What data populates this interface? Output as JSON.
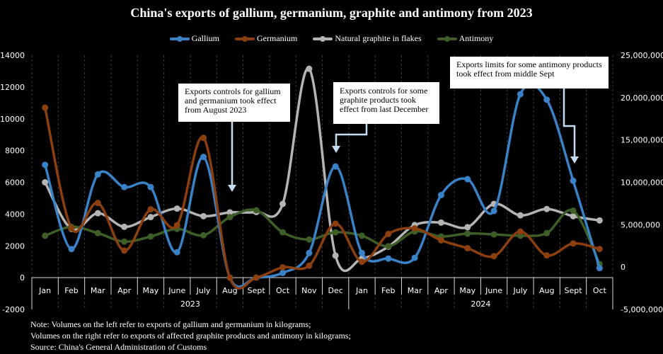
{
  "chart_data": {
    "type": "line",
    "title": "China's exports of gallium, germanium, graphite and antimony from 2023",
    "categories": [
      "Jan",
      "Feb",
      "Mar",
      "Apr",
      "May",
      "June",
      "July",
      "Aug",
      "Sept",
      "Oct",
      "Nov",
      "Dec",
      "Jan",
      "Feb",
      "Mar",
      "Apr",
      "May",
      "June",
      "July",
      "Aug",
      "Sept",
      "Oct"
    ],
    "year_groups": [
      {
        "label": "2023",
        "span": 12
      },
      {
        "label": "2024",
        "span": 10
      }
    ],
    "left_axis": {
      "ylim": [
        -2000,
        14000
      ],
      "ticks": [
        "-2000",
        "0",
        "2000",
        "4000",
        "6000",
        "8000",
        "10000",
        "12000",
        "14000"
      ],
      "tick_values": [
        -2000,
        0,
        2000,
        4000,
        6000,
        8000,
        10000,
        12000,
        14000
      ]
    },
    "right_axis": {
      "ylim": [
        -5000000,
        25000000
      ],
      "ticks": [
        "-5,000,000",
        "0",
        "5,000,000",
        "10,000,000",
        "15,000,000",
        "20,000,000",
        "25,000,000"
      ],
      "tick_values": [
        -5000000,
        0,
        5000000,
        10000000,
        15000000,
        20000000,
        25000000
      ]
    },
    "grid": "vertical-dashed",
    "legend_position": "top",
    "series": [
      {
        "name": "Gallium",
        "axis": "left",
        "color": "#3a82c8",
        "values": [
          7100,
          1800,
          6500,
          5700,
          5700,
          1600,
          7600,
          0,
          0,
          300,
          1550,
          7000,
          1550,
          1200,
          1250,
          5200,
          6200,
          4200,
          11550,
          11200,
          6100,
          600
        ]
      },
      {
        "name": "Germanium",
        "axis": "left",
        "color": "#8b3e0e",
        "values": [
          10700,
          3100,
          4700,
          1700,
          4300,
          3300,
          8800,
          0,
          0,
          650,
          750,
          3400,
          1000,
          2750,
          3100,
          2350,
          1850,
          1350,
          2900,
          1400,
          2150,
          1800
        ]
      },
      {
        "name": "Natural graphite in flakes",
        "axis": "right",
        "color": "#b4b4b4",
        "values": [
          10000000,
          4500000,
          6350000,
          4750000,
          5900000,
          6900000,
          6000000,
          6450000,
          6500000,
          7450000,
          23400000,
          1350000,
          1000000,
          2400000,
          4950000,
          5250000,
          4700000,
          7450000,
          6100000,
          6850000,
          6000000,
          5500000
        ]
      },
      {
        "name": "Antimony",
        "axis": "right",
        "color": "#3d5e26",
        "values": [
          3700000,
          4750000,
          4000000,
          3000000,
          3600000,
          4500000,
          3750000,
          5900000,
          6700000,
          4100000,
          3250000,
          4100000,
          3700000,
          2450000,
          4200000,
          3600000,
          3950000,
          3850000,
          3700000,
          4000000,
          6650000,
          350000
        ]
      }
    ],
    "annotations": [
      {
        "text_lines": [
          "Exports controls for gallium",
          "and germanium took effect",
          "from August 2023"
        ],
        "points_to": "Aug 2023"
      },
      {
        "text_lines": [
          "Exports controls for some",
          "graphite products took",
          "effect from last December"
        ],
        "points_to": "Dec 2023"
      },
      {
        "text_lines": [
          "Exports limits for some antimony products",
          "took effect from middle Sept"
        ],
        "points_to": "Sept 2024"
      }
    ],
    "notes": [
      "Note: Volumes on the left refer to exports of gallium and germanium in kilograms;",
      "Volumes on the right refer to exports of affected graphite products and antimony in kilograms;",
      "Source: China's General Administration of Customs"
    ]
  }
}
